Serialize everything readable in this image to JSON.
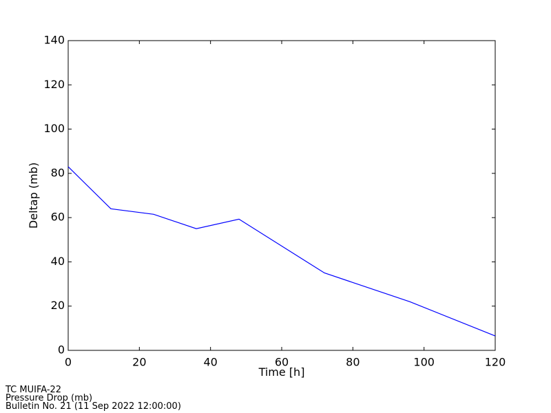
{
  "chart_data": {
    "type": "line",
    "x_label": "Time [h]",
    "y_label": "Deltap (mb)",
    "x": [
      0,
      12,
      24,
      36,
      48,
      72,
      96,
      120
    ],
    "series": [
      {
        "color": "#0000ff",
        "values": [
          83,
          64,
          61.5,
          55,
          59.3,
          35,
          22,
          6.5
        ]
      }
    ],
    "xlim": [
      0,
      120
    ],
    "xticks": [
      0,
      20,
      40,
      60,
      80,
      100,
      120
    ],
    "ylim": [
      0,
      140
    ],
    "yticks": [
      0,
      20,
      40,
      60,
      80,
      100,
      120,
      140
    ],
    "grid": false,
    "notes": [
      "TC MUIFA-22",
      "Pressure Drop (mb)",
      "Bulletin No. 21 (11 Sep 2022  12:00:00)"
    ]
  }
}
